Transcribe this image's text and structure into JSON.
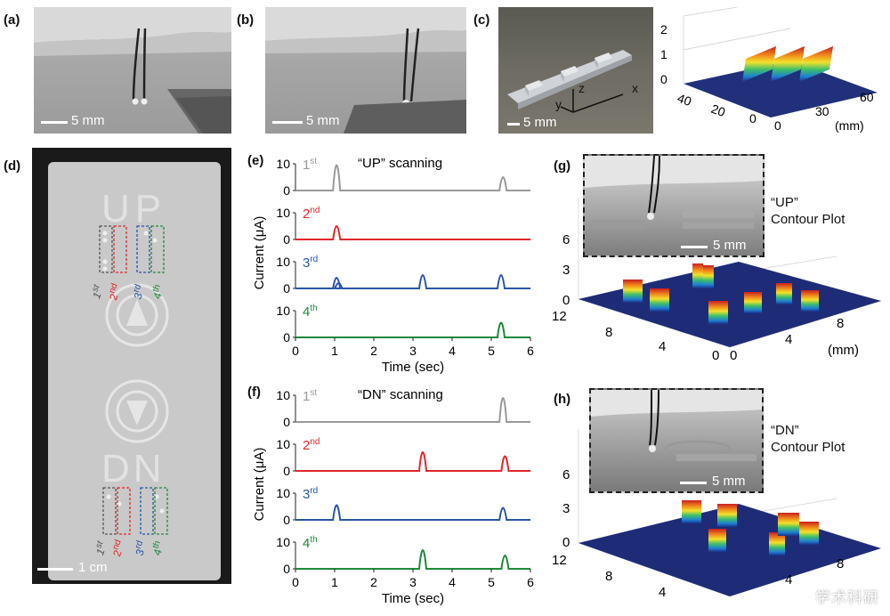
{
  "panels": {
    "a": {
      "label": "(a)",
      "scale": "5 mm"
    },
    "b": {
      "label": "(b)",
      "scale": "5 mm"
    },
    "c": {
      "label": "(c)",
      "scale": "5 mm",
      "axes": {
        "x": "x",
        "y": "y",
        "z": "z"
      },
      "plot3d": {
        "z_ticks": [
          "0",
          "1",
          "2"
        ],
        "left_ticks": [
          "40",
          "20",
          "0"
        ],
        "right_ticks": [
          "0",
          "30",
          "60"
        ],
        "unit": "(mm)"
      }
    },
    "d": {
      "label": "(d)",
      "scale": "1 cm",
      "letters_top": "UP",
      "letters_bottom": "DN",
      "ordinals": [
        {
          "n": "1",
          "s": "st"
        },
        {
          "n": "2",
          "s": "nd"
        },
        {
          "n": "3",
          "s": "rd"
        },
        {
          "n": "4",
          "s": "th"
        }
      ]
    },
    "e": {
      "label": "(e)",
      "title": "“UP” scanning"
    },
    "f": {
      "label": "(f)",
      "title": "“DN” scanning"
    },
    "g": {
      "label": "(g)",
      "contour": [
        "“UP”",
        "Contour Plot"
      ],
      "scale": "5 mm",
      "z_ticks": [
        "0",
        "3",
        "6"
      ],
      "left_ticks": [
        "12",
        "8",
        "4",
        "0"
      ],
      "right_ticks": [
        "0",
        "4",
        "8"
      ],
      "unit": "(mm)"
    },
    "h": {
      "label": "(h)",
      "contour": [
        "“DN”",
        "Contour Plot"
      ],
      "scale": "5 mm",
      "z_ticks": [
        "0",
        "3",
        "6"
      ],
      "left_ticks": [
        "12",
        "8",
        "4"
      ],
      "right_ticks": [
        "4",
        "8"
      ]
    }
  },
  "watermark": "学术科研",
  "colors": {
    "gray": "#999999",
    "red": "#e3262b",
    "blue": "#2a55a5",
    "green": "#1e8a3a"
  },
  "chart_data": [
    {
      "type": "line",
      "title": "“UP” scanning",
      "xlabel": "Time (sec)",
      "ylabel": "Current (μA)",
      "xlim": [
        0,
        6
      ],
      "ylim": [
        0,
        10
      ],
      "x_ticks": [
        "0",
        "1",
        "2",
        "3",
        "4",
        "5",
        "6"
      ],
      "y_ticks": [
        "0",
        "10"
      ],
      "series": [
        {
          "name": "1st",
          "color": "#999999",
          "peaks": [
            {
              "t": 1.05,
              "h": 9.5
            },
            {
              "t": 5.3,
              "h": 5.0
            }
          ]
        },
        {
          "name": "2nd",
          "color": "#e3262b",
          "peaks": [
            {
              "t": 1.05,
              "h": 5.0
            }
          ]
        },
        {
          "name": "3rd",
          "color": "#2a55a5",
          "peaks": [
            {
              "t": 1.05,
              "h": 4.0
            },
            {
              "t": 1.1,
              "h": 2.0
            },
            {
              "t": 3.25,
              "h": 5.0
            },
            {
              "t": 5.25,
              "h": 5.0
            }
          ]
        },
        {
          "name": "4th",
          "color": "#1e8a3a",
          "peaks": [
            {
              "t": 5.25,
              "h": 5.5
            }
          ]
        }
      ]
    },
    {
      "type": "line",
      "title": "“DN” scanning",
      "xlabel": "Time (sec)",
      "ylabel": "Current (μA)",
      "xlim": [
        0,
        6
      ],
      "ylim": [
        0,
        10
      ],
      "x_ticks": [
        "0",
        "1",
        "2",
        "3",
        "4",
        "5",
        "6"
      ],
      "y_ticks": [
        "0",
        "10"
      ],
      "series": [
        {
          "name": "1st",
          "color": "#999999",
          "peaks": [
            {
              "t": 5.3,
              "h": 9.0
            }
          ]
        },
        {
          "name": "2nd",
          "color": "#e3262b",
          "peaks": [
            {
              "t": 3.25,
              "h": 7.0
            },
            {
              "t": 5.35,
              "h": 5.5
            }
          ]
        },
        {
          "name": "3rd",
          "color": "#2a55a5",
          "peaks": [
            {
              "t": 1.05,
              "h": 5.5
            },
            {
              "t": 5.3,
              "h": 4.5
            }
          ]
        },
        {
          "name": "4th",
          "color": "#1e8a3a",
          "peaks": [
            {
              "t": 3.25,
              "h": 7.0
            },
            {
              "t": 5.35,
              "h": 5.0
            }
          ]
        }
      ]
    }
  ]
}
